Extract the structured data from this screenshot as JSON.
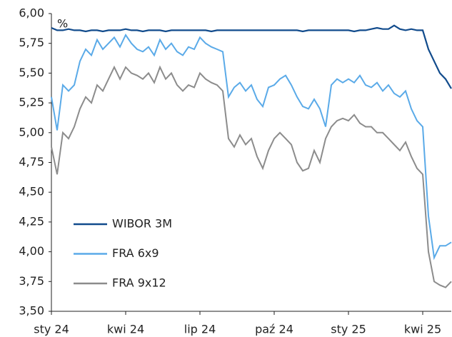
{
  "chart_data": {
    "type": "line",
    "ylabel": "%",
    "categories": [
      "sty 24",
      null,
      null,
      null,
      null,
      null,
      null,
      null,
      null,
      null,
      null,
      null,
      null,
      "kwi 24",
      null,
      null,
      null,
      null,
      null,
      null,
      null,
      null,
      null,
      null,
      null,
      null,
      "lip 24",
      null,
      null,
      null,
      null,
      null,
      null,
      null,
      null,
      null,
      null,
      null,
      null,
      "paź 24",
      null,
      null,
      null,
      null,
      null,
      null,
      null,
      null,
      null,
      null,
      null,
      null,
      "sty 25",
      null,
      null,
      null,
      null,
      null,
      null,
      null,
      null,
      null,
      null,
      null,
      null,
      "kwi 25",
      null,
      null,
      null,
      null,
      null
    ],
    "series": [
      {
        "name": "WIBOR 3M",
        "color": "#114b8c",
        "values": [
          5.88,
          5.86,
          5.86,
          5.87,
          5.86,
          5.86,
          5.85,
          5.86,
          5.86,
          5.85,
          5.86,
          5.86,
          5.86,
          5.87,
          5.86,
          5.86,
          5.85,
          5.86,
          5.86,
          5.86,
          5.85,
          5.86,
          5.86,
          5.86,
          5.86,
          5.86,
          5.86,
          5.86,
          5.85,
          5.86,
          5.86,
          5.86,
          5.86,
          5.86,
          5.86,
          5.86,
          5.86,
          5.86,
          5.86,
          5.86,
          5.86,
          5.86,
          5.86,
          5.86,
          5.85,
          5.86,
          5.86,
          5.86,
          5.86,
          5.86,
          5.86,
          5.86,
          5.86,
          5.85,
          5.86,
          5.86,
          5.87,
          5.88,
          5.87,
          5.87,
          5.9,
          5.87,
          5.86,
          5.87,
          5.86,
          5.86,
          5.7,
          5.6,
          5.5,
          5.45,
          5.37
        ]
      },
      {
        "name": "FRA 6x9",
        "color": "#5aaae8",
        "values": [
          5.3,
          5.02,
          5.4,
          5.35,
          5.4,
          5.6,
          5.7,
          5.65,
          5.78,
          5.7,
          5.75,
          5.8,
          5.72,
          5.82,
          5.75,
          5.7,
          5.68,
          5.72,
          5.65,
          5.78,
          5.7,
          5.75,
          5.68,
          5.65,
          5.72,
          5.7,
          5.8,
          5.75,
          5.72,
          5.7,
          5.68,
          5.3,
          5.38,
          5.42,
          5.35,
          5.4,
          5.28,
          5.22,
          5.38,
          5.4,
          5.45,
          5.48,
          5.4,
          5.3,
          5.22,
          5.2,
          5.28,
          5.2,
          5.05,
          5.4,
          5.45,
          5.42,
          5.45,
          5.42,
          5.48,
          5.4,
          5.38,
          5.42,
          5.35,
          5.4,
          5.33,
          5.3,
          5.35,
          5.2,
          5.1,
          5.05,
          4.3,
          3.95,
          4.05,
          4.05,
          4.08
        ]
      },
      {
        "name": "FRA 9x12",
        "color": "#8c8c8c",
        "values": [
          4.88,
          4.65,
          5.0,
          4.95,
          5.05,
          5.2,
          5.3,
          5.25,
          5.4,
          5.35,
          5.45,
          5.55,
          5.45,
          5.55,
          5.5,
          5.48,
          5.45,
          5.5,
          5.42,
          5.55,
          5.45,
          5.5,
          5.4,
          5.35,
          5.4,
          5.38,
          5.5,
          5.45,
          5.42,
          5.4,
          5.35,
          4.95,
          4.88,
          4.98,
          4.9,
          4.95,
          4.8,
          4.7,
          4.85,
          4.95,
          5.0,
          4.95,
          4.9,
          4.75,
          4.68,
          4.7,
          4.85,
          4.75,
          4.95,
          5.05,
          5.1,
          5.12,
          5.1,
          5.15,
          5.08,
          5.05,
          5.05,
          5.0,
          5.0,
          4.95,
          4.9,
          4.85,
          4.92,
          4.8,
          4.7,
          4.65,
          4.0,
          3.75,
          3.72,
          3.7,
          3.75
        ]
      }
    ],
    "ylim": [
      3.5,
      6.0
    ],
    "yticks": [
      {
        "value": 3.5,
        "label": "3,50"
      },
      {
        "value": 3.75,
        "label": "3,75"
      },
      {
        "value": 4,
        "label": "4,00"
      },
      {
        "value": 4.25,
        "label": "4,25"
      },
      {
        "value": 4.5,
        "label": "4,50"
      },
      {
        "value": 4.75,
        "label": "4,75"
      },
      {
        "value": 5,
        "label": "5,00"
      },
      {
        "value": 5.25,
        "label": "5,25"
      },
      {
        "value": 5.5,
        "label": "5,50"
      },
      {
        "value": 5.75,
        "label": "5,75"
      },
      {
        "value": 6,
        "label": "6,00"
      }
    ],
    "legend": "lower left"
  }
}
